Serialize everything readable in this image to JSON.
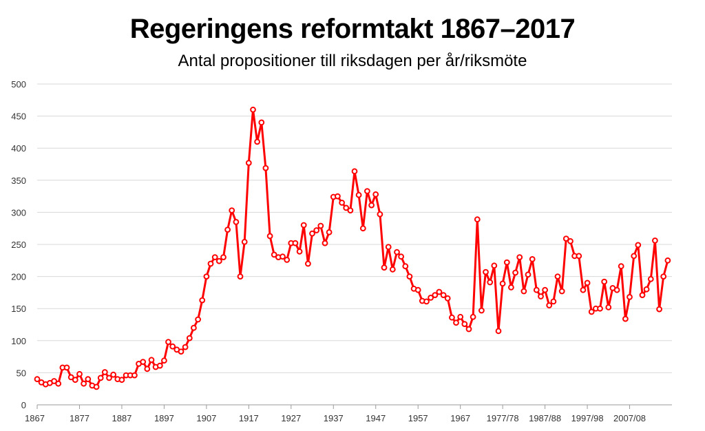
{
  "chart_data": {
    "type": "line",
    "title": "Regeringens reformtakt 1867–2017",
    "subtitle": "Antal propositioner till riksdagen per år/riksmöte",
    "xlabel": "",
    "ylabel": "",
    "ylim": [
      0,
      500
    ],
    "yticks": [
      0,
      50,
      100,
      150,
      200,
      250,
      300,
      350,
      400,
      450,
      500
    ],
    "xtick_labels": [
      "1867",
      "1877",
      "1887",
      "1897",
      "1907",
      "1917",
      "1927",
      "1937",
      "1947",
      "1957",
      "1967",
      "1977/78",
      "1987/88",
      "1997/98",
      "2007/08"
    ],
    "grid": true,
    "legend": "none",
    "color": "#ff0000",
    "values": [
      40,
      35,
      32,
      34,
      37,
      33,
      58,
      58,
      43,
      39,
      48,
      33,
      40,
      30,
      28,
      42,
      51,
      42,
      47,
      40,
      39,
      46,
      46,
      46,
      64,
      67,
      56,
      70,
      59,
      61,
      69,
      98,
      91,
      86,
      83,
      90,
      104,
      120,
      133,
      163,
      200,
      220,
      230,
      224,
      230,
      273,
      303,
      285,
      200,
      254,
      377,
      460,
      410,
      440,
      369,
      263,
      234,
      230,
      231,
      226,
      252,
      252,
      239,
      280,
      220,
      267,
      272,
      279,
      252,
      269,
      324,
      325,
      315,
      307,
      303,
      364,
      327,
      275,
      333,
      311,
      328,
      297,
      214,
      246,
      211,
      238,
      231,
      216,
      200,
      181,
      179,
      162,
      161,
      167,
      171,
      176,
      171,
      166,
      136,
      128,
      137,
      126,
      118,
      137,
      289,
      147,
      207,
      191,
      217,
      115,
      189,
      222,
      183,
      206,
      230,
      177,
      203,
      227,
      179,
      169,
      179,
      155,
      161,
      200,
      177,
      259,
      255,
      232,
      232,
      179,
      190,
      145,
      150,
      150,
      192,
      152,
      182,
      179,
      216,
      134,
      168,
      232,
      249,
      171,
      180,
      196,
      256,
      149,
      200,
      225
    ]
  }
}
